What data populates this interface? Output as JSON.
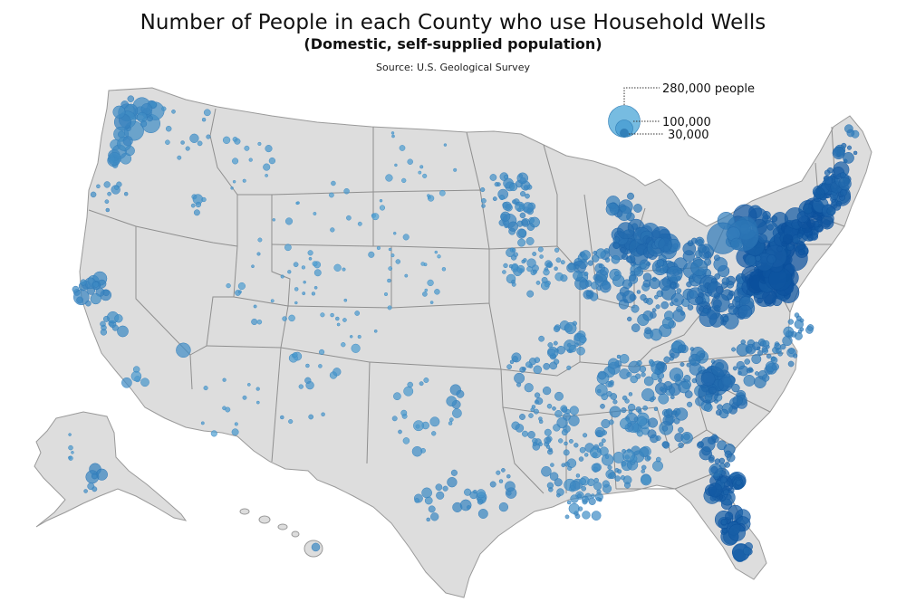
{
  "header": {
    "title": "Number of People in each County who use Household Wells",
    "subtitle": "(Domestic, self-supplied population)",
    "source": "Source: U.S. Geological Survey"
  },
  "legend": {
    "entries": [
      {
        "label": "280,000 people",
        "value": 280000
      },
      {
        "label": "100,000",
        "value": 100000
      },
      {
        "label": "30,000",
        "value": 30000
      }
    ]
  },
  "colors": {
    "land": "#dddddd",
    "borders": "#8f8f8f",
    "bubble_light": "#5fb0dc",
    "bubble_dark": "#0a4f9c",
    "text": "#111111"
  },
  "map_data": {
    "type": "proportional-symbol-map",
    "region": "United States (counties)",
    "symbol": "circle",
    "encoding": "circle area ∝ domestic self-supplied population"
  }
}
